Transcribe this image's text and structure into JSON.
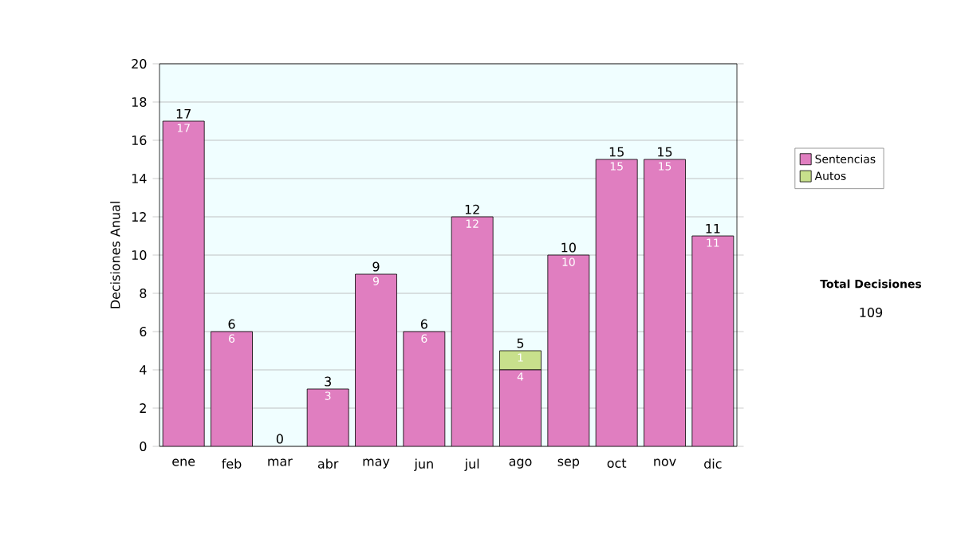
{
  "chart_data": {
    "type": "bar",
    "stacked": true,
    "ylabel": "Decisiones Anual",
    "categories": [
      "ene",
      "feb",
      "mar",
      "abr",
      "may",
      "jun",
      "jul",
      "ago",
      "sep",
      "oct",
      "nov",
      "dic"
    ],
    "series": [
      {
        "name": "Sentencias",
        "color": "#e07ec0",
        "values": [
          17,
          6,
          0,
          3,
          9,
          6,
          12,
          4,
          10,
          15,
          15,
          11
        ],
        "value_labels": [
          "17",
          "6",
          null,
          "3",
          "9",
          "6",
          "12",
          "4",
          "10",
          "15",
          "15",
          "11"
        ]
      },
      {
        "name": "Autos",
        "color": "#c8e08c",
        "values": [
          0,
          0,
          0,
          0,
          0,
          0,
          0,
          1,
          0,
          0,
          0,
          0
        ],
        "value_labels": [
          null,
          null,
          null,
          null,
          null,
          null,
          null,
          "1",
          null,
          null,
          null,
          null
        ]
      }
    ],
    "totals": [
      "17",
      "6",
      "0",
      "3",
      "9",
      "6",
      "12",
      "5",
      "10",
      "15",
      "15",
      "11"
    ],
    "ylim": [
      0,
      20
    ],
    "yticks": [
      0,
      2,
      4,
      6,
      8,
      10,
      12,
      14,
      16,
      18,
      20
    ],
    "grid": "y",
    "legend": "right",
    "annotations": [
      "Total Decisiones",
      "109"
    ]
  }
}
